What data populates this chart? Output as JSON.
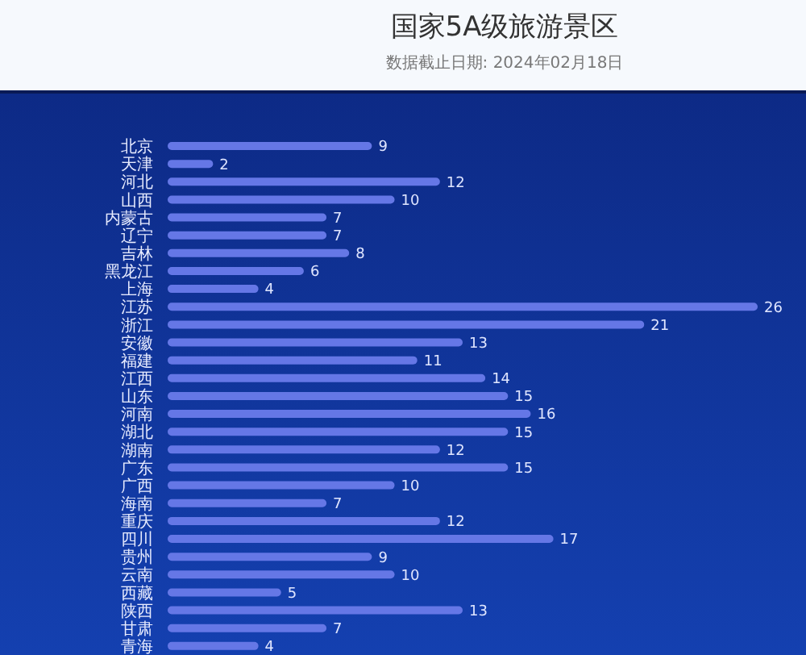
{
  "chart_data": {
    "type": "bar",
    "title": "国家5A级旅游景区",
    "subtitle": "数据截止日期: 2024年02月18日",
    "orientation": "horizontal",
    "categories": [
      "北京",
      "天津",
      "河北",
      "山西",
      "内蒙古",
      "辽宁",
      "吉林",
      "黑龙江",
      "上海",
      "江苏",
      "浙江",
      "安徽",
      "福建",
      "江西",
      "山东",
      "河南",
      "湖北",
      "湖南",
      "广东",
      "广西",
      "海南",
      "重庆",
      "四川",
      "贵州",
      "云南",
      "西藏",
      "陕西",
      "甘肃",
      "青海"
    ],
    "values": [
      9,
      2,
      12,
      10,
      7,
      7,
      8,
      6,
      4,
      26,
      21,
      13,
      11,
      14,
      15,
      16,
      15,
      12,
      15,
      10,
      7,
      12,
      17,
      9,
      10,
      5,
      13,
      7,
      4
    ],
    "color": "#6577e6",
    "data_labels": true
  }
}
